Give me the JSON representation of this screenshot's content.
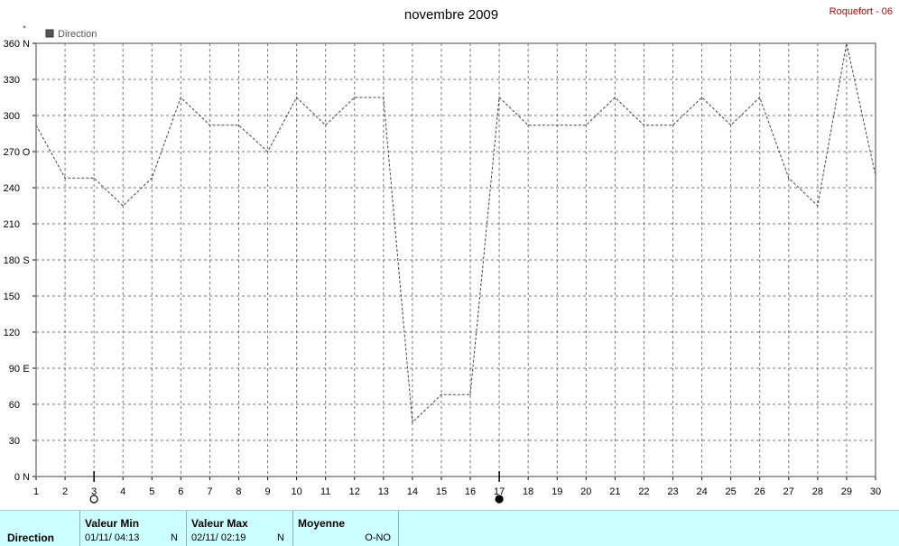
{
  "chart_data": {
    "type": "line",
    "title": "novembre 2009",
    "station": "Roquefort - 06",
    "unit": "°",
    "legend": [
      "Direction"
    ],
    "legend_placement": "top-left",
    "grid": true,
    "xlim": [
      1,
      30
    ],
    "ylim": [
      0,
      360
    ],
    "x_ticks": [
      1,
      2,
      3,
      4,
      5,
      6,
      7,
      8,
      9,
      10,
      11,
      12,
      13,
      14,
      15,
      16,
      17,
      18,
      19,
      20,
      21,
      22,
      23,
      24,
      25,
      26,
      27,
      28,
      29,
      30
    ],
    "y_ticks": [
      {
        "value": 0,
        "label": "0"
      },
      {
        "value": 30,
        "label": "30"
      },
      {
        "value": 60,
        "label": "60"
      },
      {
        "value": 90,
        "label": "90"
      },
      {
        "value": 120,
        "label": "120"
      },
      {
        "value": 150,
        "label": "150"
      },
      {
        "value": 180,
        "label": "180"
      },
      {
        "value": 210,
        "label": "210"
      },
      {
        "value": 240,
        "label": "240"
      },
      {
        "value": 270,
        "label": "270"
      },
      {
        "value": 300,
        "label": "300"
      },
      {
        "value": 330,
        "label": "330"
      },
      {
        "value": 360,
        "label": "360"
      }
    ],
    "compass_ticks": [
      {
        "value": 0,
        "label": "N"
      },
      {
        "value": 90,
        "label": "E"
      },
      {
        "value": 180,
        "label": "S"
      },
      {
        "value": 270,
        "label": "O"
      },
      {
        "value": 360,
        "label": "N"
      }
    ],
    "series": [
      {
        "name": "Direction",
        "color": "#444444",
        "style": "dashed",
        "points": [
          [
            1,
            292
          ],
          [
            2,
            248
          ],
          [
            3,
            248
          ],
          [
            4,
            225
          ],
          [
            5,
            248
          ],
          [
            6,
            315
          ],
          [
            7,
            292
          ],
          [
            8,
            292
          ],
          [
            9,
            270
          ],
          [
            10,
            315
          ],
          [
            11,
            292
          ],
          [
            12,
            315
          ],
          [
            13,
            315
          ],
          [
            14,
            45
          ],
          [
            15,
            68
          ],
          [
            16,
            68
          ],
          [
            17,
            315
          ],
          [
            18,
            292
          ],
          [
            19,
            292
          ],
          [
            20,
            292
          ],
          [
            21,
            315
          ],
          [
            22,
            292
          ],
          [
            23,
            292
          ],
          [
            24,
            315
          ],
          [
            25,
            292
          ],
          [
            26,
            315
          ],
          [
            27,
            248
          ],
          [
            28,
            225
          ],
          [
            29,
            360
          ],
          [
            30,
            250
          ]
        ]
      }
    ],
    "markers": [
      {
        "x": 3,
        "type": "open-circle",
        "meaning": "min"
      },
      {
        "x": 17,
        "type": "filled-circle",
        "meaning": "max"
      }
    ]
  },
  "stats": {
    "row_label": "Direction",
    "min": {
      "header": "Valeur Min",
      "value": "01/11/  04:13",
      "dir": "N"
    },
    "max": {
      "header": "Valeur Max",
      "value": "02/11/  02:19",
      "dir": "N"
    },
    "avg": {
      "header": "Moyenne",
      "value": "O-NO"
    }
  },
  "colors": {
    "station": "#c00000",
    "stats_background": "#ccffff",
    "grid": "#777777",
    "series": "#444444"
  }
}
